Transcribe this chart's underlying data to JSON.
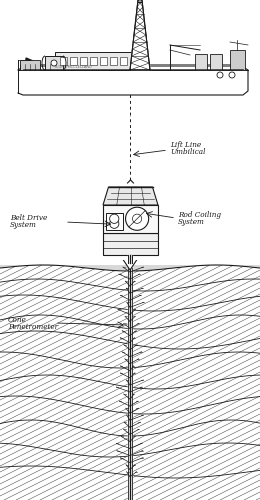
{
  "bg_color": "#ffffff",
  "line_color": "#1a1a1a",
  "hatch_color": "#888888",
  "annotations": {
    "lift_line": [
      "Lift Line",
      "Umbilical"
    ],
    "belt_drive": [
      "Belt Drive",
      "System"
    ],
    "rod_coiling": [
      "Rod Coiling",
      "System"
    ],
    "cone": [
      "Cone",
      "Penetrometer"
    ]
  },
  "font_size": 5.2,
  "fig_width": 2.6,
  "fig_height": 5.0,
  "dpi": 100
}
